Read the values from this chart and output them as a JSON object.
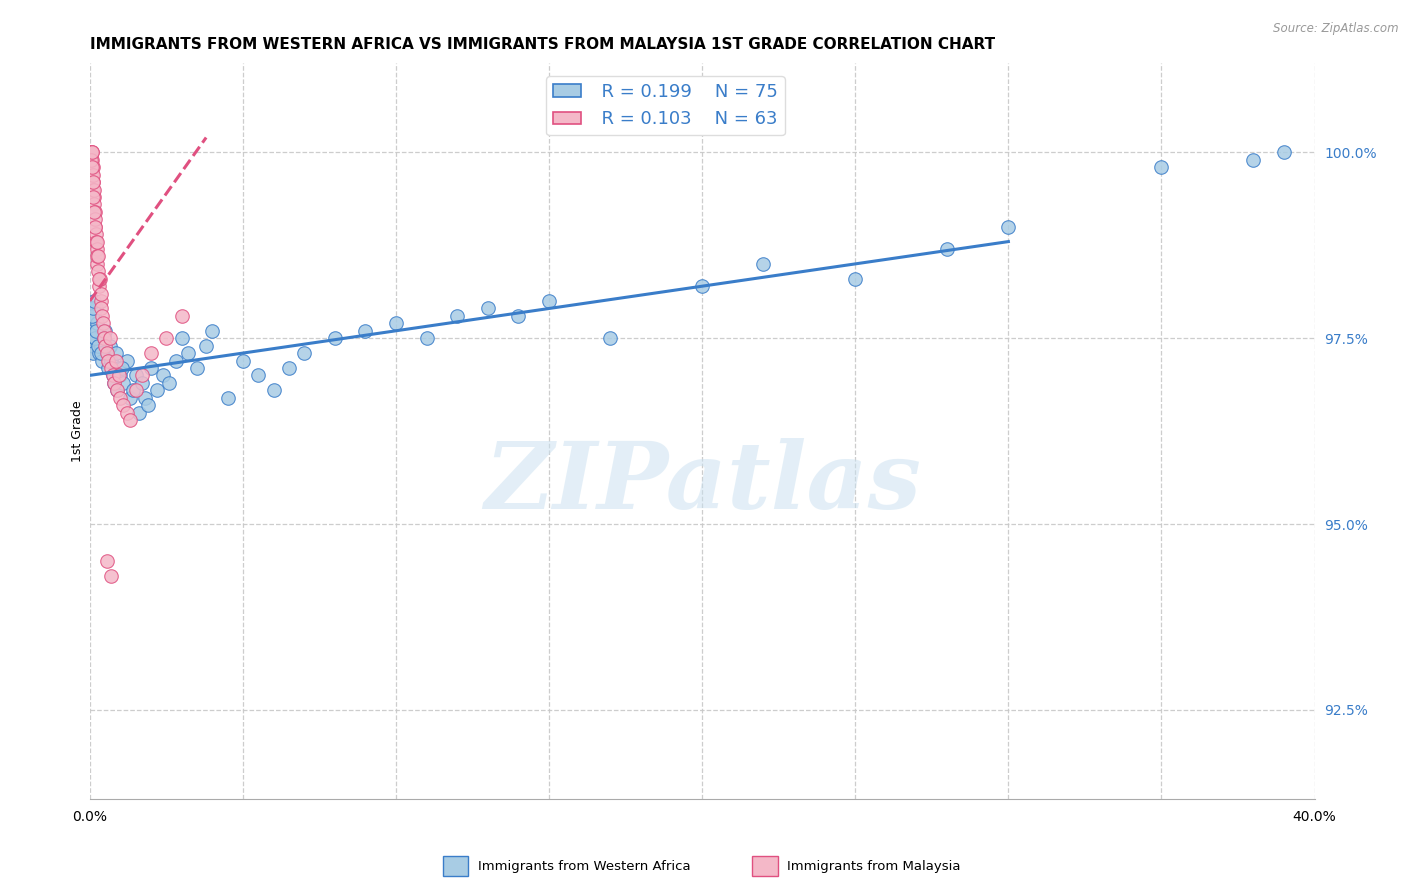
{
  "title": "IMMIGRANTS FROM WESTERN AFRICA VS IMMIGRANTS FROM MALAYSIA 1ST GRADE CORRELATION CHART",
  "source": "Source: ZipAtlas.com",
  "ylabel": "1st Grade",
  "ytick_values": [
    92.5,
    95.0,
    97.5,
    100.0
  ],
  "xlim": [
    0.0,
    40.0
  ],
  "ylim": [
    91.3,
    101.2
  ],
  "legend_blue_R": "R = 0.199",
  "legend_blue_N": "N = 75",
  "legend_pink_R": "R = 0.103",
  "legend_pink_N": "N = 63",
  "watermark": "ZIPatlas",
  "blue_scatter_x": [
    0.05,
    0.08,
    0.1,
    0.12,
    0.15,
    0.18,
    0.2,
    0.22,
    0.25,
    0.3,
    0.35,
    0.4,
    0.45,
    0.5,
    0.55,
    0.6,
    0.65,
    0.7,
    0.75,
    0.8,
    0.85,
    0.9,
    0.95,
    1.0,
    1.1,
    1.2,
    1.3,
    1.4,
    1.5,
    1.6,
    1.7,
    1.8,
    1.9,
    2.0,
    2.2,
    2.4,
    2.6,
    2.8,
    3.0,
    3.2,
    3.5,
    3.8,
    4.0,
    4.5,
    5.0,
    5.5,
    6.0,
    6.5,
    7.0,
    8.0,
    9.0,
    10.0,
    11.0,
    12.0,
    13.0,
    14.0,
    15.0,
    17.0,
    20.0,
    22.0,
    25.0,
    28.0,
    30.0,
    35.0,
    38.0,
    39.0,
    0.06,
    0.09,
    0.13,
    0.16,
    0.21,
    0.28,
    0.38,
    0.48,
    1.05
  ],
  "blue_scatter_y": [
    97.5,
    97.6,
    97.4,
    97.3,
    97.8,
    97.5,
    97.9,
    97.6,
    97.7,
    97.3,
    97.4,
    97.2,
    97.5,
    97.6,
    97.3,
    97.1,
    97.4,
    97.2,
    97.0,
    96.9,
    97.3,
    96.8,
    97.1,
    97.0,
    96.9,
    97.2,
    96.7,
    96.8,
    97.0,
    96.5,
    96.9,
    96.7,
    96.6,
    97.1,
    96.8,
    97.0,
    96.9,
    97.2,
    97.5,
    97.3,
    97.1,
    97.4,
    97.6,
    96.7,
    97.2,
    97.0,
    96.8,
    97.1,
    97.3,
    97.5,
    97.6,
    97.7,
    97.5,
    97.8,
    97.9,
    97.8,
    98.0,
    97.5,
    98.2,
    98.5,
    98.3,
    98.7,
    99.0,
    99.8,
    99.9,
    100.0,
    97.8,
    97.9,
    98.0,
    97.5,
    97.6,
    97.4,
    97.3,
    97.5,
    97.1
  ],
  "pink_scatter_x": [
    0.02,
    0.03,
    0.04,
    0.05,
    0.06,
    0.07,
    0.08,
    0.09,
    0.1,
    0.11,
    0.12,
    0.13,
    0.14,
    0.15,
    0.16,
    0.17,
    0.18,
    0.19,
    0.2,
    0.22,
    0.24,
    0.25,
    0.28,
    0.3,
    0.32,
    0.35,
    0.38,
    0.4,
    0.42,
    0.45,
    0.48,
    0.5,
    0.55,
    0.6,
    0.65,
    0.7,
    0.75,
    0.8,
    0.85,
    0.9,
    0.95,
    1.0,
    1.1,
    1.2,
    1.3,
    1.5,
    1.7,
    2.0,
    2.5,
    3.0,
    0.04,
    0.06,
    0.08,
    0.1,
    0.12,
    0.15,
    0.18,
    0.22,
    0.26,
    0.3,
    0.35,
    0.55,
    0.7
  ],
  "pink_scatter_y": [
    100.0,
    99.9,
    100.0,
    99.8,
    99.9,
    100.0,
    99.7,
    99.8,
    99.6,
    99.5,
    99.7,
    99.4,
    99.3,
    99.5,
    99.2,
    99.0,
    99.1,
    98.9,
    98.8,
    98.7,
    98.5,
    98.6,
    98.4,
    98.2,
    98.3,
    98.0,
    97.9,
    97.8,
    97.7,
    97.6,
    97.5,
    97.4,
    97.3,
    97.2,
    97.5,
    97.1,
    97.0,
    96.9,
    97.2,
    96.8,
    97.0,
    96.7,
    96.6,
    96.5,
    96.4,
    96.8,
    97.0,
    97.3,
    97.5,
    97.8,
    99.9,
    100.0,
    99.8,
    99.6,
    99.4,
    99.2,
    99.0,
    98.8,
    98.6,
    98.3,
    98.1,
    94.5,
    94.3
  ],
  "blue_line_x": [
    0.0,
    30.0
  ],
  "blue_line_y": [
    97.0,
    98.8
  ],
  "pink_line_x": [
    0.0,
    3.8
  ],
  "pink_line_y": [
    98.0,
    100.2
  ],
  "blue_color": "#a8cce4",
  "pink_color": "#f4b8c8",
  "blue_line_color": "#3a7dc9",
  "pink_line_color": "#e05080",
  "grid_color": "#c8c8c8",
  "title_fontsize": 11,
  "axis_label_fontsize": 9,
  "tick_fontsize": 10,
  "legend_fontsize": 13
}
